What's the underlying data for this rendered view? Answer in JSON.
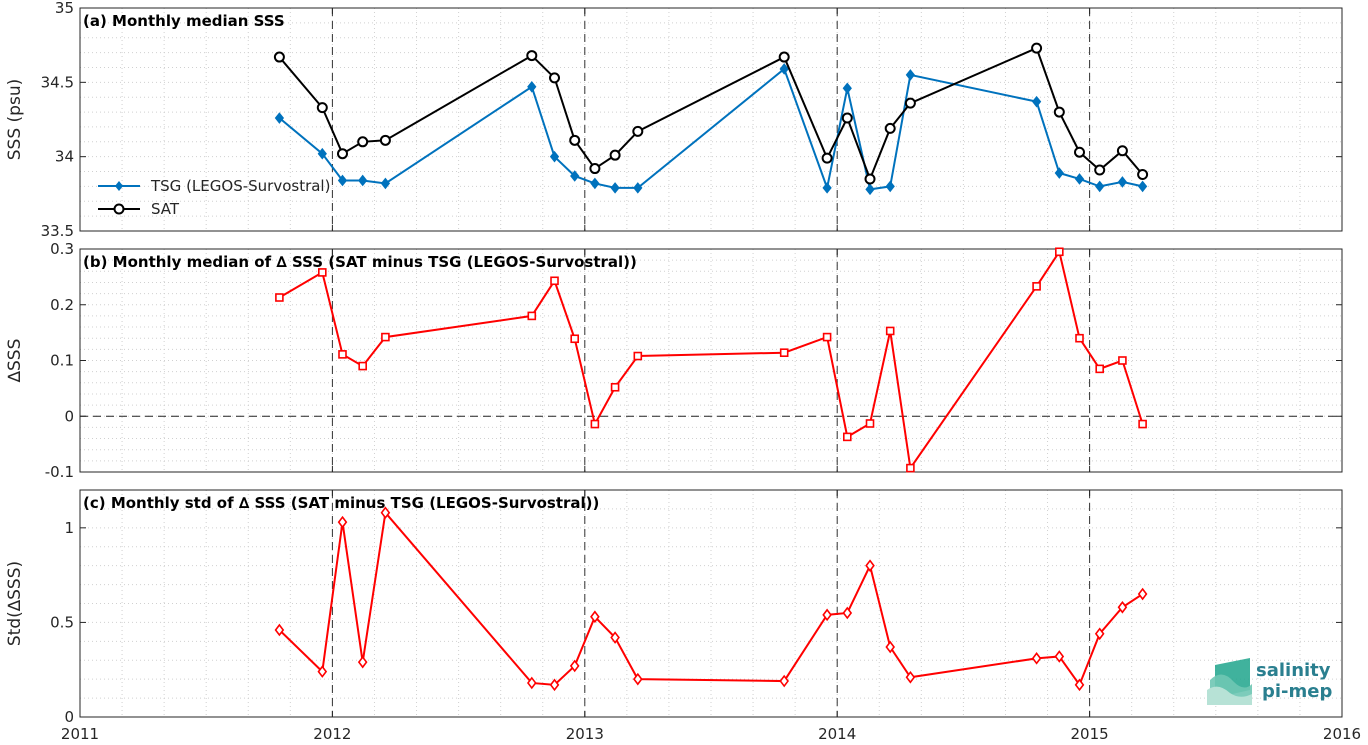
{
  "chart_data": [
    {
      "type": "line",
      "title": "(a) Monthly median SSS",
      "ylabel": "SSS (psu)",
      "xlabel": "",
      "xlim": [
        2011,
        2016
      ],
      "ylim": [
        33.5,
        35
      ],
      "xticks": [
        2011,
        2012,
        2013,
        2014,
        2015,
        2016
      ],
      "xtick_labels": [
        "2011",
        "2012",
        "2013",
        "2014",
        "2015",
        "2016"
      ],
      "yticks": [
        33.5,
        34,
        34.5,
        35
      ],
      "ytick_labels": [
        "33.5",
        "34",
        "34.5",
        "35"
      ],
      "grid": true,
      "legend_position": "left",
      "series": [
        {
          "name": "TSG (LEGOS-Survostral)",
          "color": "#0072bd",
          "marker": "diamond",
          "x": [
            2011.79,
            2011.96,
            2012.04,
            2012.12,
            2012.21,
            2012.79,
            2012.88,
            2012.96,
            2013.04,
            2013.12,
            2013.21,
            2013.79,
            2013.96,
            2014.04,
            2014.13,
            2014.21,
            2014.29,
            2014.79,
            2014.88,
            2014.96,
            2015.04,
            2015.13,
            2015.21
          ],
          "y": [
            34.26,
            34.02,
            33.84,
            33.84,
            33.82,
            34.47,
            34.0,
            33.87,
            33.82,
            33.79,
            33.79,
            34.59,
            33.79,
            34.46,
            33.78,
            33.8,
            34.55,
            34.37,
            33.89,
            33.85,
            33.8,
            33.83,
            33.8
          ]
        },
        {
          "name": "SAT",
          "color": "#000000",
          "marker": "circle",
          "x": [
            2011.79,
            2011.96,
            2012.04,
            2012.12,
            2012.21,
            2012.79,
            2012.88,
            2012.96,
            2013.04,
            2013.12,
            2013.21,
            2013.79,
            2013.96,
            2014.04,
            2014.13,
            2014.21,
            2014.29,
            2014.79,
            2014.88,
            2014.96,
            2015.04,
            2015.13,
            2015.21
          ],
          "y": [
            34.67,
            34.33,
            34.02,
            34.1,
            34.11,
            34.68,
            34.53,
            34.11,
            33.92,
            34.01,
            34.17,
            34.67,
            33.99,
            34.26,
            33.85,
            34.19,
            34.36,
            34.73,
            34.3,
            34.03,
            33.91,
            34.04,
            33.88
          ]
        }
      ]
    },
    {
      "type": "line",
      "title": "(b) Monthly median of ∆ SSS (SAT minus TSG (LEGOS-Survostral))",
      "ylabel": "∆SSS",
      "xlabel": "",
      "xlim": [
        2011,
        2016
      ],
      "ylim": [
        -0.1,
        0.3
      ],
      "yticks": [
        -0.1,
        0,
        0.1,
        0.2,
        0.3
      ],
      "ytick_labels": [
        "-0.1",
        "0",
        "0.1",
        "0.2",
        "0.3"
      ],
      "grid": true,
      "zero_line": true,
      "series": [
        {
          "color": "#ff0000",
          "marker": "square",
          "x": [
            2011.79,
            2011.96,
            2012.04,
            2012.12,
            2012.21,
            2012.79,
            2012.88,
            2012.96,
            2013.04,
            2013.12,
            2013.21,
            2013.79,
            2013.96,
            2014.04,
            2014.13,
            2014.21,
            2014.29,
            2014.79,
            2014.88,
            2014.96,
            2015.04,
            2015.13,
            2015.21
          ],
          "y": [
            0.213,
            0.258,
            0.111,
            0.09,
            0.142,
            0.18,
            0.243,
            0.139,
            -0.014,
            0.052,
            0.108,
            0.114,
            0.142,
            -0.037,
            -0.013,
            0.153,
            -0.093,
            0.233,
            0.295,
            0.14,
            0.085,
            0.1,
            -0.014
          ]
        }
      ]
    },
    {
      "type": "line",
      "title": "(c) Monthly std of ∆ SSS (SAT minus TSG (LEGOS-Survostral))",
      "ylabel": "Std(∆SSS)",
      "xlabel": "",
      "xlim": [
        2011,
        2016
      ],
      "ylim": [
        0,
        1.2
      ],
      "yticks": [
        0,
        0.5,
        1
      ],
      "ytick_labels": [
        "0",
        "0.5",
        "1"
      ],
      "grid": true,
      "series": [
        {
          "color": "#ff0000",
          "marker": "diamond-open",
          "x": [
            2011.79,
            2011.96,
            2012.04,
            2012.12,
            2012.21,
            2012.79,
            2012.88,
            2012.96,
            2013.04,
            2013.12,
            2013.21,
            2013.79,
            2013.96,
            2014.04,
            2014.13,
            2014.21,
            2014.29,
            2014.79,
            2014.88,
            2014.96,
            2015.04,
            2015.13,
            2015.21
          ],
          "y": [
            0.46,
            0.24,
            1.03,
            0.29,
            1.08,
            0.18,
            0.17,
            0.27,
            0.53,
            0.42,
            0.2,
            0.19,
            0.54,
            0.55,
            0.8,
            0.37,
            0.21,
            0.31,
            0.32,
            0.17,
            0.44,
            0.58,
            0.65
          ]
        }
      ]
    }
  ],
  "logo": {
    "line1": "salinity",
    "line2": "pi-mep"
  }
}
